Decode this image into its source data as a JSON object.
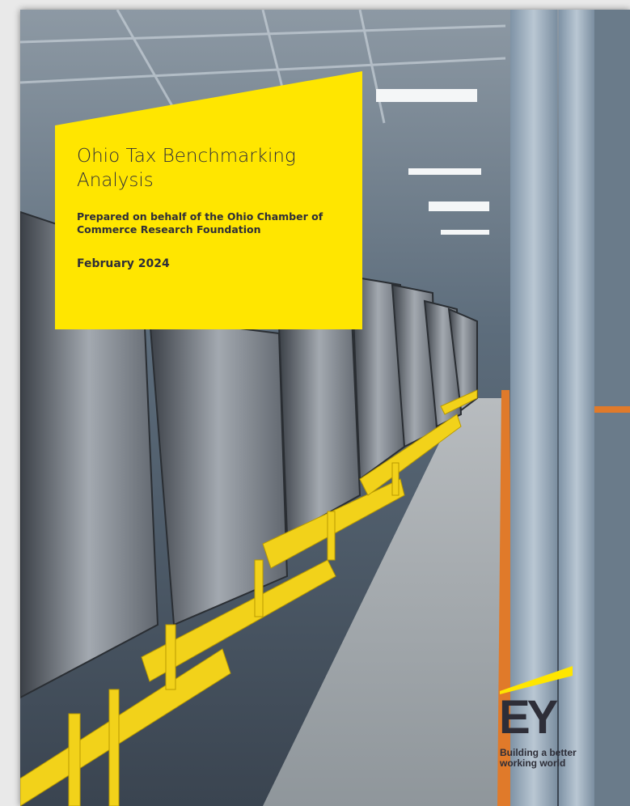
{
  "cover": {
    "title": "Ohio Tax Benchmarking Analysis",
    "subtitle": "Prepared on behalf of the Ohio Chamber of Commerce Research Foundation",
    "date": "February 2024",
    "logo": {
      "mark": "EY",
      "tagline": "Building a better working world"
    }
  }
}
